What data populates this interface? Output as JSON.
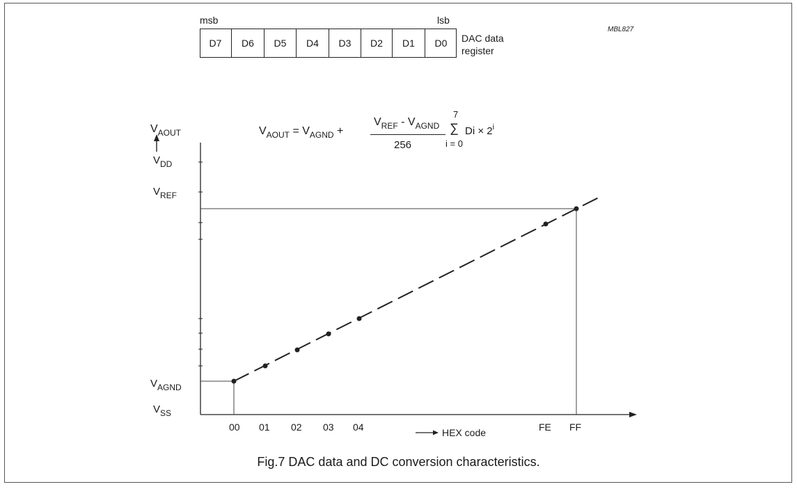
{
  "code_tag": "MBL827",
  "register": {
    "msb_label": "msb",
    "lsb_label": "lsb",
    "bits": [
      "D7",
      "D6",
      "D5",
      "D4",
      "D3",
      "D2",
      "D1",
      "D0"
    ],
    "name_line1": "DAC data",
    "name_line2": "register"
  },
  "formula": {
    "lhs_main": "V",
    "lhs_sub": "AOUT",
    "eq_text": " = V",
    "agnd_sub": "AGND",
    "plus_text": " + ",
    "num_v1": "V",
    "num_sub1": "REF",
    "num_dash": " - V",
    "num_sub2": "AGND",
    "denominator": "256",
    "sum_top": "7",
    "sum_symbol": "∑",
    "sum_bottom": "i = 0",
    "sum_term": "Di × 2",
    "sum_exp": "i"
  },
  "y_axis": {
    "title_main": "V",
    "title_sub": "AOUT",
    "ticks": [
      {
        "main": "V",
        "sub": "DD"
      },
      {
        "main": "V",
        "sub": "REF"
      },
      {
        "main": "V",
        "sub": "AGND"
      },
      {
        "main": "V",
        "sub": "SS"
      }
    ]
  },
  "x_axis": {
    "ticks": [
      "00",
      "01",
      "02",
      "03",
      "04",
      "FE",
      "FF"
    ],
    "arrow_label": "HEX code"
  },
  "caption": "Fig.7  DAC data and DC conversion characteristics.",
  "chart_data": {
    "type": "line",
    "x": [
      "00",
      "01",
      "02",
      "03",
      "04",
      "FE",
      "FF"
    ],
    "x_numeric": [
      0,
      1,
      2,
      3,
      4,
      254,
      255
    ],
    "relation": "VAOUT = VAGND + (VREF - VAGND)/256 * code"
  }
}
